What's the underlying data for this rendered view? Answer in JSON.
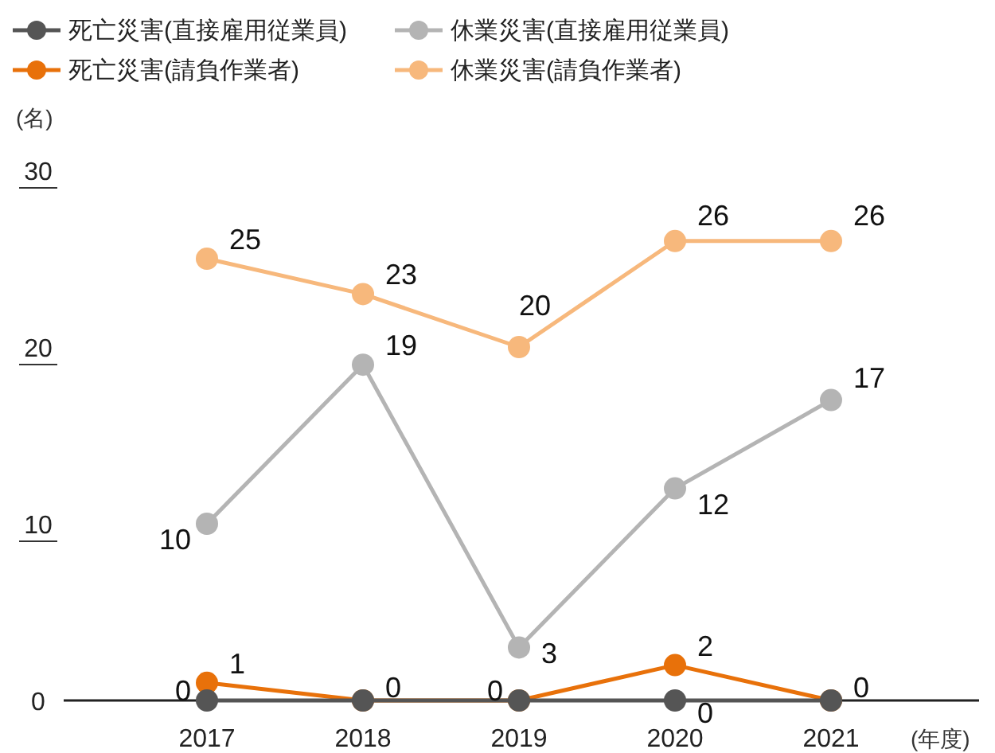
{
  "chart_data": {
    "type": "line",
    "categories": [
      "2017",
      "2018",
      "2019",
      "2020",
      "2021"
    ],
    "ylabel": "(名)",
    "xlabel": "(年度)",
    "ylim": [
      0,
      30
    ],
    "yticks": [
      0,
      10,
      20,
      30
    ],
    "grid": false,
    "legend": "top left",
    "marker": "circle",
    "line_style": "solid",
    "series": [
      {
        "name": "死亡災害(直接雇用従業員)",
        "color": "#555555",
        "values": [
          0,
          0,
          0,
          0,
          0
        ],
        "value_labels": [
          "0",
          null,
          "0",
          "0",
          null
        ]
      },
      {
        "name": "休業災害(直接雇用従業員)",
        "color": "#b4b4b4",
        "values": [
          10,
          19,
          3,
          12,
          17
        ],
        "value_labels": [
          "10",
          "19",
          "3",
          "12",
          "17"
        ]
      },
      {
        "name": "死亡災害(請負作業者)",
        "color": "#e8710a",
        "values": [
          1,
          0,
          0,
          2,
          0
        ],
        "value_labels": [
          "1",
          "0",
          null,
          "2",
          "0"
        ]
      },
      {
        "name": "休業災害(請負作業者)",
        "color": "#f7b87c",
        "values": [
          25,
          23,
          20,
          26,
          26
        ],
        "value_labels": [
          "25",
          "23",
          "20",
          "26",
          "26"
        ]
      }
    ]
  }
}
